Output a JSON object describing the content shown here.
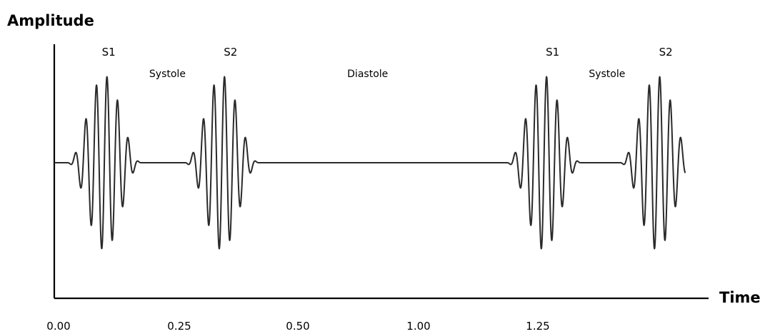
{
  "chart_data": {
    "type": "line",
    "ylabel": "Amplitude",
    "xlabel": "Time",
    "xticks": [
      "0.00",
      "0.25",
      "0.50",
      "1.00",
      "1.25"
    ],
    "xlim": [
      0,
      1.5
    ],
    "ylim": [
      -1,
      1
    ],
    "series": [
      {
        "bursts": [
          {
            "center": 0.115,
            "half_width": 0.085,
            "cycles": 7
          },
          {
            "center": 0.385,
            "half_width": 0.085,
            "cycles": 7
          },
          {
            "center": 1.125,
            "half_width": 0.085,
            "cycles": 7
          },
          {
            "center": 1.385,
            "half_width": 0.085,
            "cycles": 7
          }
        ],
        "x_start": 0.0,
        "x_end": 1.45
      }
    ],
    "sound_labels": [
      {
        "text": "S1",
        "x": 0.125
      },
      {
        "text": "S2",
        "x": 0.405
      },
      {
        "text": "S1",
        "x": 1.145
      },
      {
        "text": "S2",
        "x": 1.405
      }
    ],
    "phase_labels": [
      {
        "text": "Systole",
        "x": 0.26
      },
      {
        "text": "Diastole",
        "x": 0.72
      },
      {
        "text": "Systole",
        "x": 1.27
      }
    ]
  }
}
